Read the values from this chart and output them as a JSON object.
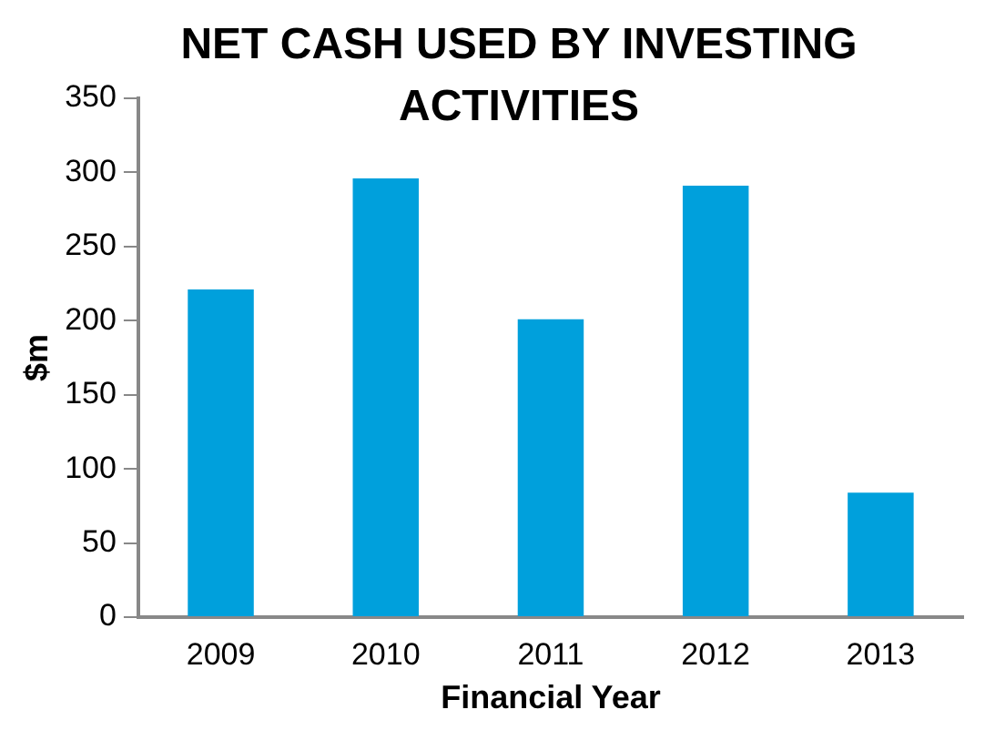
{
  "chart_data": {
    "type": "bar",
    "title": "NET CASH USED BY INVESTING ACTIVITIES",
    "xlabel": "Financial Year",
    "ylabel": "$m",
    "categories": [
      "2009",
      "2010",
      "2011",
      "2012",
      "2013"
    ],
    "values": [
      221,
      296,
      201,
      291,
      84
    ],
    "color": "#00a0dc",
    "ylim": [
      0,
      350
    ],
    "yticks": [
      0,
      50,
      100,
      150,
      200,
      250,
      300,
      350
    ],
    "grid": false,
    "legend": false
  }
}
